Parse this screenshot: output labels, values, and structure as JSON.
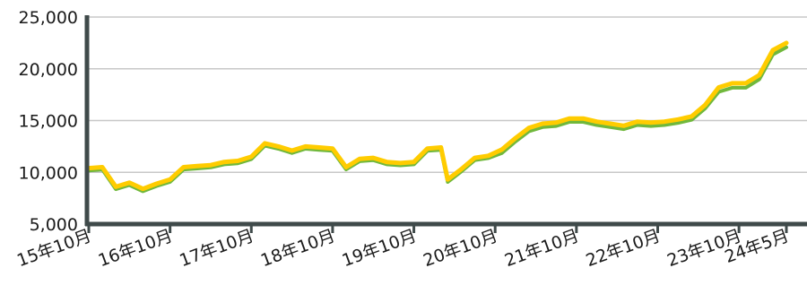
{
  "chart_data": {
    "type": "line",
    "title": "",
    "xlabel": "",
    "ylabel": "",
    "ylim": [
      5000,
      25000
    ],
    "yticks": [
      5000,
      10000,
      15000,
      20000,
      25000
    ],
    "ytick_labels": [
      "5,000",
      "10,000",
      "15,000",
      "20,000",
      "25,000"
    ],
    "xlim": [
      "2015-10",
      "2024-05"
    ],
    "xticks": [
      "2015-10",
      "2016-10",
      "2017-10",
      "2018-10",
      "2019-10",
      "2020-10",
      "2021-10",
      "2022-10",
      "2023-10",
      "2024-05"
    ],
    "xtick_labels": [
      "15年10月",
      "16年10月",
      "17年10月",
      "18年10月",
      "19年10月",
      "20年10月",
      "21年10月",
      "22年10月",
      "23年10月",
      "24年5月"
    ],
    "grid": true,
    "x": [
      "2015-10",
      "2015-12",
      "2016-02",
      "2016-04",
      "2016-06",
      "2016-08",
      "2016-10",
      "2016-12",
      "2017-02",
      "2017-04",
      "2017-06",
      "2017-08",
      "2017-10",
      "2017-12",
      "2018-02",
      "2018-04",
      "2018-06",
      "2018-08",
      "2018-10",
      "2018-12",
      "2019-02",
      "2019-04",
      "2019-06",
      "2019-08",
      "2019-10",
      "2019-12",
      "2020-02",
      "2020-03",
      "2020-05",
      "2020-07",
      "2020-09",
      "2020-11",
      "2021-01",
      "2021-03",
      "2021-05",
      "2021-07",
      "2021-09",
      "2021-11",
      "2022-01",
      "2022-03",
      "2022-05",
      "2022-07",
      "2022-09",
      "2022-11",
      "2023-01",
      "2023-03",
      "2023-05",
      "2023-07",
      "2023-09",
      "2023-11",
      "2024-01",
      "2024-03",
      "2024-05"
    ],
    "series": [
      {
        "color": "#ffcc00",
        "values": [
          10400,
          10500,
          8600,
          9000,
          8400,
          8900,
          9300,
          10500,
          10600,
          10700,
          11000,
          11100,
          11500,
          12800,
          12500,
          12100,
          12500,
          12400,
          12300,
          10500,
          11300,
          11400,
          11000,
          10900,
          11000,
          12300,
          12400,
          9300,
          10300,
          11400,
          11600,
          12200,
          13300,
          14300,
          14700,
          14800,
          15200,
          15200,
          14900,
          14700,
          14500,
          14900,
          14800,
          14900,
          15100,
          15400,
          16500,
          18200,
          18600,
          18600,
          19400,
          21800,
          22500
        ]
      },
      {
        "color": "#70b83c",
        "values": [
          10300,
          10400,
          8500,
          8900,
          8300,
          8800,
          9200,
          10400,
          10500,
          10600,
          10900,
          11000,
          11400,
          12700,
          12400,
          12000,
          12400,
          12300,
          12200,
          10400,
          11200,
          11300,
          10900,
          10800,
          10900,
          12200,
          12300,
          9200,
          10200,
          11300,
          11500,
          12000,
          13100,
          14100,
          14500,
          14600,
          15000,
          15000,
          14700,
          14500,
          14300,
          14700,
          14600,
          14700,
          14900,
          15200,
          16300,
          17900,
          18300,
          18300,
          19100,
          21500,
          22200
        ]
      }
    ]
  }
}
